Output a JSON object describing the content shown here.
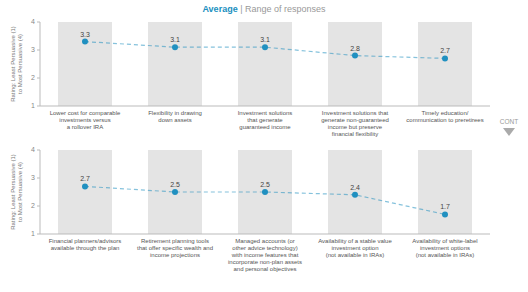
{
  "chart_data": [
    {
      "type": "line",
      "title": "Average | Range of responses",
      "categories": [
        "Lower cost for comparable\ninvestments versus\na rollover IRA",
        "Flexibility in drawing\ndown assets",
        "Investment solutions\nthat generate\nguaranteed income",
        "Investment solutions that\ngenerate non-guaranteed\nincome but preserve\nfinancial flexibility",
        "Timely education/\ncommunication to preretirees"
      ],
      "values": [
        3.3,
        3.1,
        3.1,
        2.8,
        2.7
      ],
      "color": "#2090c0",
      "marker": "circle",
      "line_style": "dashed",
      "data_labels": true,
      "ylabel": "Rating: Least Persuasive (1)\nto Most Persuasive (4)",
      "ylim": [
        1.0,
        4.0
      ],
      "yticks": [
        1,
        2,
        3,
        4
      ],
      "annotations": [
        "CONT"
      ]
    },
    {
      "type": "line",
      "categories": [
        "Financial planners/advisors\navailable through the plan",
        "Retirement planning tools\nthat offer specific wealth and\nincome projections",
        "Managed accounts (or\nother advice technology)\nwith income features that\nincorporate non-plan assets\nand personal objectives",
        "Availability of a stable value\ninvestment option\n(not available in IRAs)",
        "Availability of white-label\ninvestment options\n(not available in IRAs)"
      ],
      "values": [
        2.7,
        2.5,
        2.5,
        2.4,
        1.7
      ],
      "color": "#2090c0",
      "marker": "circle",
      "line_style": "dashed",
      "data_labels": true,
      "ylabel": "Rating: Least Persuasive (1)\nto Most Persuasive (4)",
      "ylim": [
        1.0,
        4.0
      ],
      "yticks": [
        1,
        2,
        3,
        4
      ]
    }
  ]
}
